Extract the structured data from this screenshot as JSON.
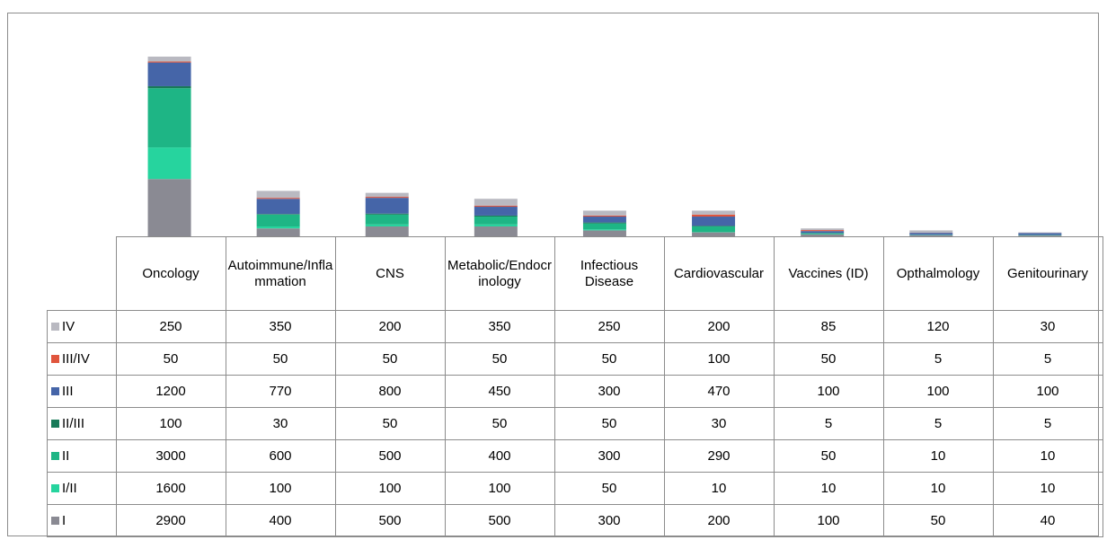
{
  "chart_data": {
    "type": "stacked-bar",
    "categories": [
      "Oncology",
      "Autoimmune/Inflammation",
      "CNS",
      "Metabolic/Endocrinology",
      "Infectious Disease",
      "Cardiovascular",
      "Vaccines (ID)",
      "Opthalmology",
      "Genitourinary"
    ],
    "series": [
      {
        "name": "IV",
        "color": "#b9b9c1",
        "values": [
          250,
          350,
          200,
          350,
          250,
          200,
          85,
          120,
          30
        ]
      },
      {
        "name": "III/IV",
        "color": "#e0553d",
        "values": [
          50,
          50,
          50,
          50,
          50,
          100,
          50,
          5,
          5
        ]
      },
      {
        "name": "III",
        "color": "#4565a8",
        "values": [
          1200,
          770,
          800,
          450,
          300,
          470,
          100,
          100,
          100
        ]
      },
      {
        "name": "II/III",
        "color": "#187a58",
        "values": [
          100,
          30,
          50,
          50,
          50,
          30,
          5,
          5,
          5
        ]
      },
      {
        "name": "II",
        "color": "#1eb585",
        "values": [
          3000,
          600,
          500,
          400,
          300,
          290,
          50,
          10,
          10
        ]
      },
      {
        "name": "I/II",
        "color": "#26d49e",
        "values": [
          1600,
          100,
          100,
          100,
          50,
          10,
          10,
          10,
          10
        ]
      },
      {
        "name": "I",
        "color": "#8a8a93",
        "values": [
          2900,
          400,
          500,
          500,
          300,
          200,
          100,
          50,
          40
        ]
      }
    ]
  }
}
